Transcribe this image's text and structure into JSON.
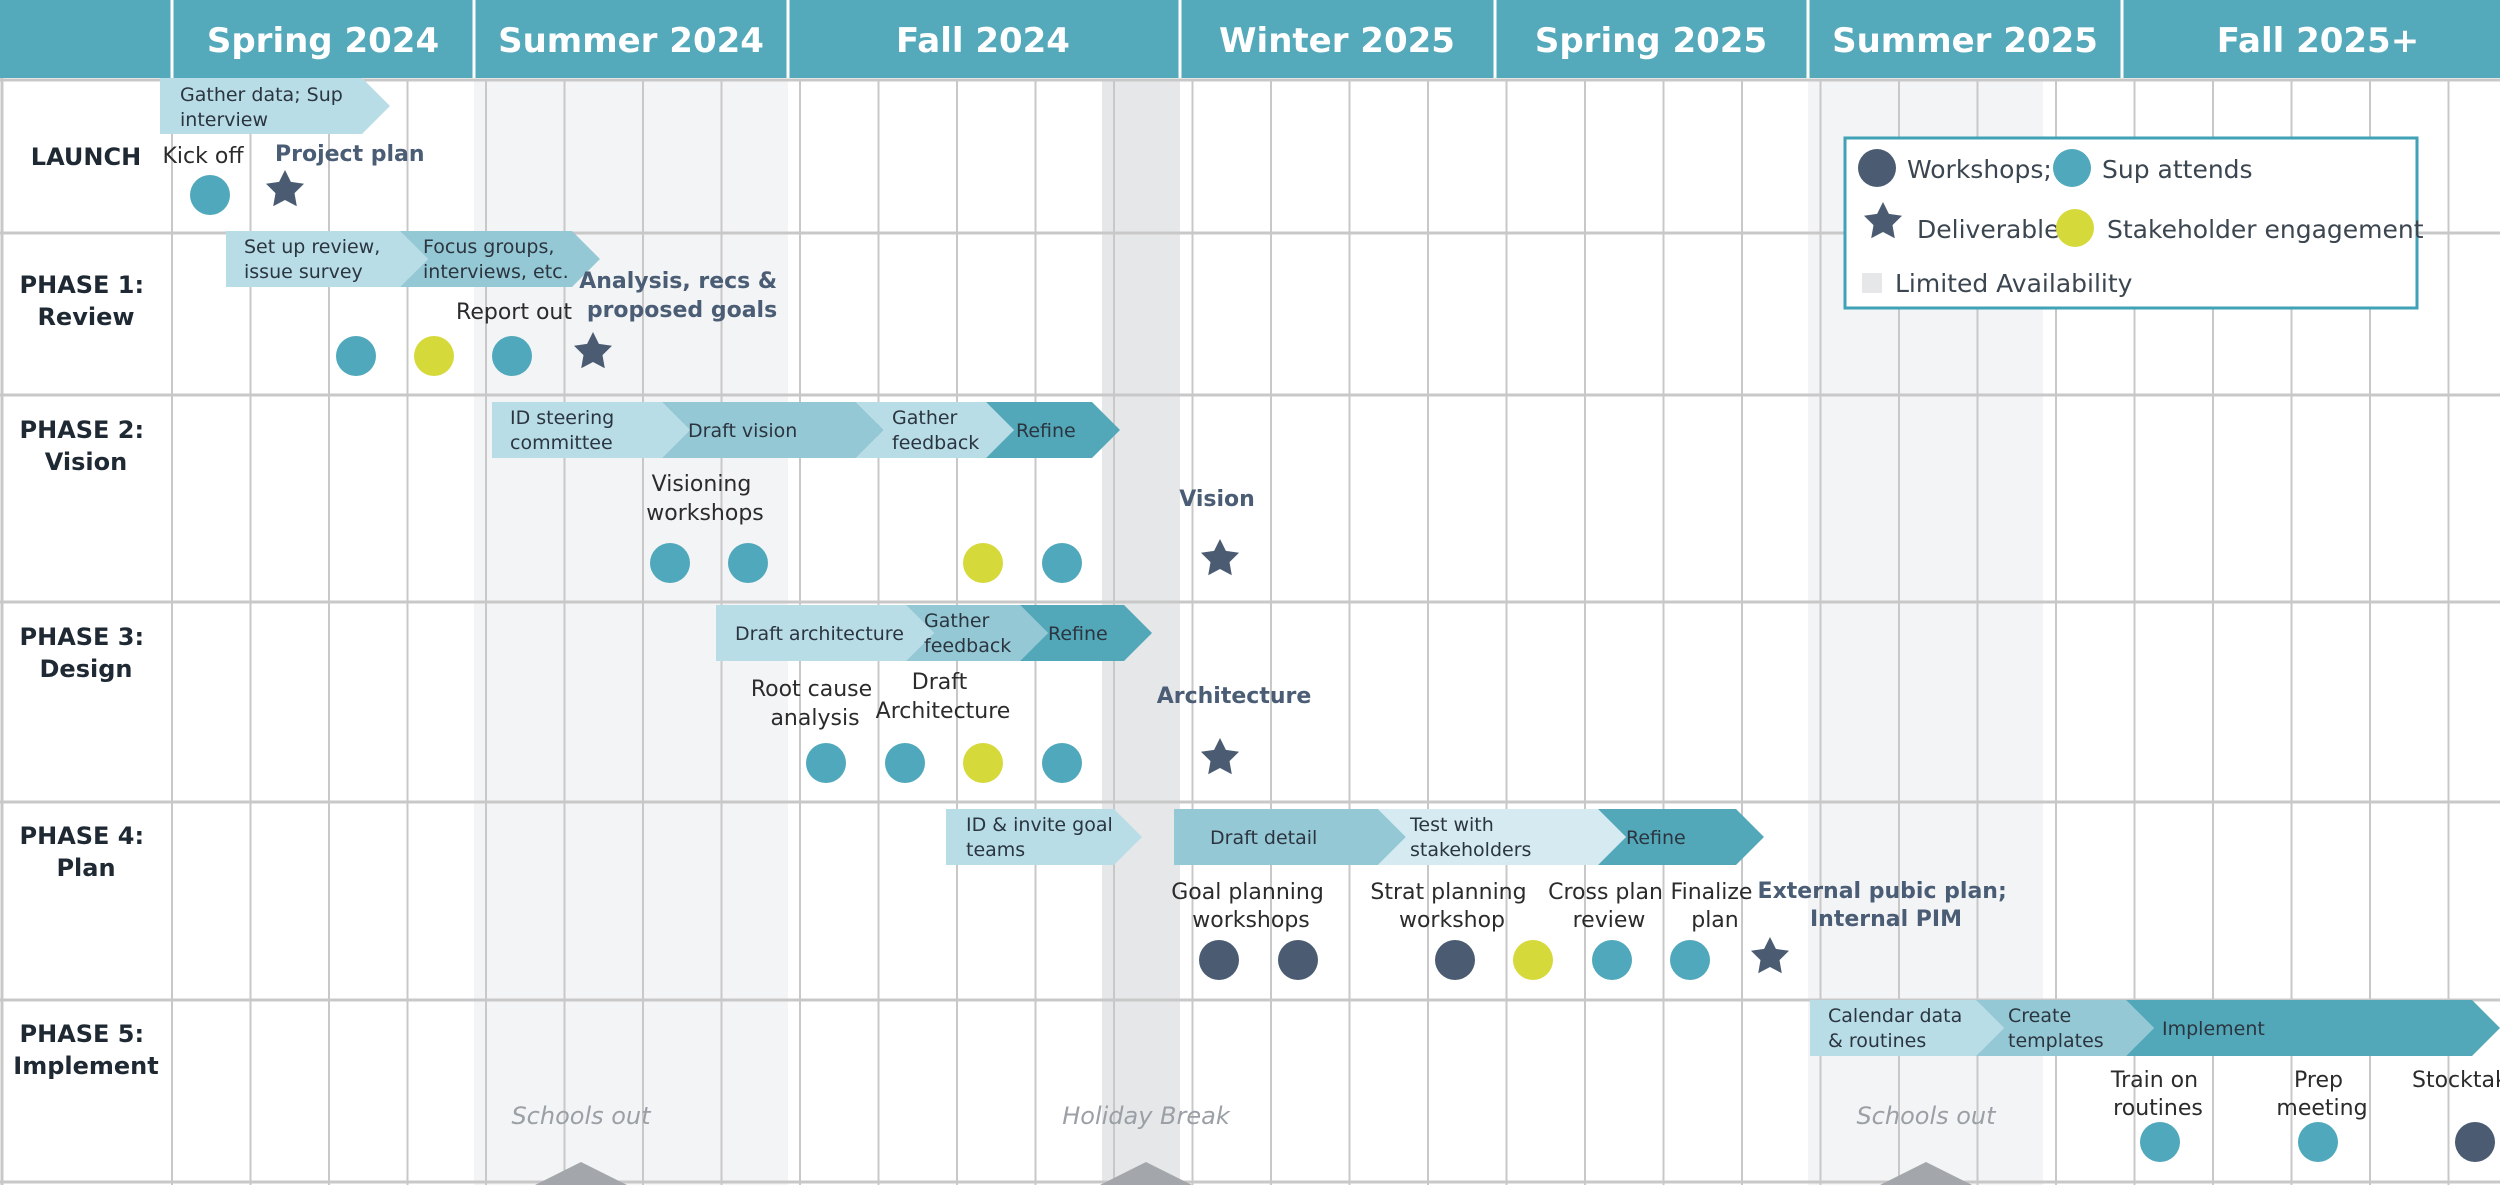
{
  "colors": {
    "header": "#54a9bb",
    "navy": "#4a5b72",
    "teal": "#4fa8bb",
    "yellow": "#d6d93a",
    "bar1": "#b8dde6",
    "bar2": "#95c8d5",
    "bar3": "#d5ebf1",
    "bar4": "#52a7b8",
    "grid": "#c8c8c8",
    "shade_light": "#f3f4f6",
    "shade_dark": "#e6e7e9"
  },
  "seasons": [
    "Spring 2024",
    "Summer 2024",
    "Fall 2024",
    "Winter 2025",
    "Spring 2025",
    "Summer 2025",
    "Fall 2025+"
  ],
  "phases": [
    {
      "lines": [
        "LAUNCH"
      ]
    },
    {
      "lines": [
        "PHASE 1:",
        "Review"
      ]
    },
    {
      "lines": [
        "PHASE 2:",
        "Vision"
      ]
    },
    {
      "lines": [
        "PHASE 3:",
        "Design"
      ]
    },
    {
      "lines": [
        "PHASE 4:",
        "Plan"
      ]
    },
    {
      "lines": [
        "PHASE 5:",
        "Implement"
      ]
    }
  ],
  "bars": [
    {
      "lines": [
        "Gather data; Sup",
        "interview"
      ]
    },
    {
      "lines": [
        "Set up review,",
        "issue survey"
      ]
    },
    {
      "lines": [
        "Focus groups,",
        "interviews, etc."
      ]
    },
    {
      "lines": [
        "ID steering",
        "committee"
      ]
    },
    {
      "lines": [
        "Draft vision"
      ]
    },
    {
      "lines": [
        "Gather",
        "feedback"
      ]
    },
    {
      "lines": [
        "Refine"
      ]
    },
    {
      "lines": [
        "Draft architecture"
      ]
    },
    {
      "lines": [
        "Gather",
        "feedback"
      ]
    },
    {
      "lines": [
        "Refine"
      ]
    },
    {
      "lines": [
        "ID & invite goal",
        "teams"
      ]
    },
    {
      "lines": [
        "Draft detail"
      ]
    },
    {
      "lines": [
        "Test with",
        "stakeholders"
      ]
    },
    {
      "lines": [
        "Refine"
      ]
    },
    {
      "lines": [
        "Calendar data",
        "& routines"
      ]
    },
    {
      "lines": [
        "Create",
        "templates"
      ]
    },
    {
      "lines": [
        "Implement"
      ]
    }
  ],
  "labels": [
    {
      "lines": [
        "Kick off"
      ]
    },
    {
      "lines": [
        "Report out"
      ]
    },
    {
      "lines": [
        "Visioning",
        "workshops"
      ]
    },
    {
      "lines": [
        "Root cause",
        "analysis"
      ]
    },
    {
      "lines": [
        "Draft",
        "Architecture"
      ]
    },
    {
      "lines": [
        "Goal planning",
        "workshops"
      ]
    },
    {
      "lines": [
        "Strat planning",
        "workshop"
      ]
    },
    {
      "lines": [
        "Cross plan",
        "review"
      ]
    },
    {
      "lines": [
        "Finalize",
        "plan"
      ]
    },
    {
      "lines": [
        "Train on",
        "routines"
      ]
    },
    {
      "lines": [
        "Prep",
        "meeting"
      ]
    },
    {
      "lines": [
        "Stocktake"
      ]
    }
  ],
  "deliverables": [
    {
      "lines": [
        "Project plan"
      ]
    },
    {
      "lines": [
        "Analysis, recs &",
        "proposed goals"
      ]
    },
    {
      "lines": [
        "Vision"
      ]
    },
    {
      "lines": [
        "Architecture"
      ]
    },
    {
      "lines": [
        "External pubic plan;",
        "Internal PIM"
      ]
    }
  ],
  "shade_labels": [
    "Schools out",
    "Holiday Break",
    "Schools out"
  ],
  "markers": {
    "launch": [
      "teal"
    ],
    "phase1": [
      "teal",
      "yellow",
      "teal"
    ],
    "phase2": [
      "teal",
      "teal",
      "yellow",
      "teal"
    ],
    "phase3": [
      "teal",
      "teal",
      "yellow",
      "teal"
    ],
    "phase4": [
      "navy",
      "navy",
      "navy",
      "yellow",
      "teal",
      "teal"
    ],
    "phase5": [
      "teal",
      "teal",
      "navy"
    ]
  },
  "legend": {
    "workshops": "Workshops;",
    "sup_attends": "Sup attends",
    "deliverable": "Deliverable",
    "stakeholder": "Stakeholder engagement",
    "limited": "Limited Availability"
  }
}
